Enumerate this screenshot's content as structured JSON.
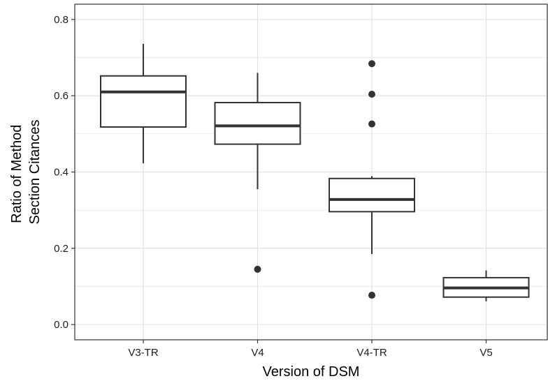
{
  "chart_data": {
    "type": "boxplot",
    "xlabel": "Version of DSM",
    "ylabel": [
      "Ratio of Method",
      "Section Citances"
    ],
    "ylim": [
      -0.04,
      0.84
    ],
    "yticks": [
      0.0,
      0.2,
      0.4,
      0.6,
      0.8
    ],
    "ytick_labels": [
      "0.0",
      "0.2",
      "0.4",
      "0.6",
      "0.8"
    ],
    "grid": true,
    "categories": [
      "V3-TR",
      "V4",
      "V4-TR",
      "V5"
    ],
    "boxes": [
      {
        "category": "V3-TR",
        "whisker_low": 0.423,
        "q1": 0.518,
        "median": 0.61,
        "q3": 0.652,
        "whisker_high": 0.736,
        "outliers": []
      },
      {
        "category": "V4",
        "whisker_low": 0.355,
        "q1": 0.473,
        "median": 0.521,
        "q3": 0.582,
        "whisker_high": 0.66,
        "outliers": [
          0.145
        ]
      },
      {
        "category": "V4-TR",
        "whisker_low": 0.185,
        "q1": 0.296,
        "median": 0.328,
        "q3": 0.383,
        "whisker_high": 0.389,
        "outliers": [
          0.684,
          0.604,
          0.526,
          0.077
        ]
      },
      {
        "category": "V5",
        "whisker_low": 0.061,
        "q1": 0.072,
        "median": 0.096,
        "q3": 0.123,
        "whisker_high": 0.142,
        "outliers": []
      }
    ],
    "colors": {
      "panel_border": "#333333",
      "grid": "#dedede",
      "box_stroke": "#333333",
      "box_fill": "#ffffff",
      "outlier": "#333333"
    }
  }
}
